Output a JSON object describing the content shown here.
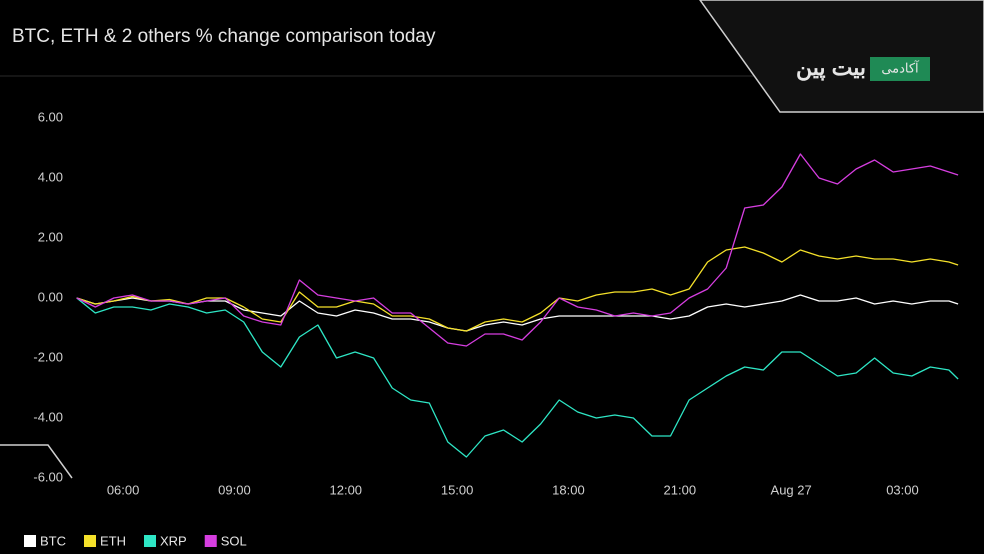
{
  "chart_data": {
    "type": "line",
    "title": "BTC, ETH & 2 others % change comparison today",
    "x": [
      4.75,
      5.25,
      5.75,
      6.25,
      6.75,
      7.25,
      7.75,
      8.25,
      8.75,
      9.25,
      9.75,
      10.25,
      10.75,
      11.25,
      11.75,
      12.25,
      12.75,
      13.25,
      13.75,
      14.25,
      14.75,
      15.25,
      15.75,
      16.25,
      16.75,
      17.25,
      17.75,
      18.25,
      18.75,
      19.25,
      19.75,
      20.25,
      20.75,
      21.25,
      21.75,
      22.25,
      22.75,
      23.25,
      23.75,
      24.25,
      24.75,
      25.25,
      25.75,
      26.25,
      26.75,
      27.25,
      27.75,
      28.25,
      28.5
    ],
    "series": [
      {
        "name": "BTC",
        "color": "#ffffff",
        "values": [
          0,
          -0.2,
          -0.1,
          0,
          -0.1,
          -0.1,
          -0.2,
          -0.1,
          -0.1,
          -0.4,
          -0.5,
          -0.6,
          -0.1,
          -0.5,
          -0.6,
          -0.4,
          -0.5,
          -0.7,
          -0.7,
          -0.8,
          -1.0,
          -1.1,
          -0.9,
          -0.8,
          -0.9,
          -0.7,
          -0.6,
          -0.6,
          -0.6,
          -0.6,
          -0.6,
          -0.6,
          -0.7,
          -0.6,
          -0.3,
          -0.2,
          -0.3,
          -0.2,
          -0.1,
          0.1,
          -0.1,
          -0.1,
          0.0,
          -0.2,
          -0.1,
          -0.2,
          -0.1,
          -0.1,
          -0.2
        ]
      },
      {
        "name": "ETH",
        "color": "#f5e12a",
        "values": [
          0,
          -0.2,
          -0.1,
          0.05,
          -0.1,
          -0.05,
          -0.2,
          0,
          0,
          -0.3,
          -0.7,
          -0.8,
          0.2,
          -0.3,
          -0.3,
          -0.1,
          -0.2,
          -0.6,
          -0.6,
          -0.7,
          -1.0,
          -1.1,
          -0.8,
          -0.7,
          -0.8,
          -0.5,
          0.0,
          -0.1,
          0.1,
          0.2,
          0.2,
          0.3,
          0.1,
          0.3,
          1.2,
          1.6,
          1.7,
          1.5,
          1.2,
          1.6,
          1.4,
          1.3,
          1.4,
          1.3,
          1.3,
          1.2,
          1.3,
          1.2,
          1.1
        ]
      },
      {
        "name": "XRP",
        "color": "#2ee6c5",
        "values": [
          0,
          -0.5,
          -0.3,
          -0.3,
          -0.4,
          -0.2,
          -0.3,
          -0.5,
          -0.4,
          -0.8,
          -1.8,
          -2.3,
          -1.3,
          -0.9,
          -2.0,
          -1.8,
          -2.0,
          -3.0,
          -3.4,
          -3.5,
          -4.8,
          -5.3,
          -4.6,
          -4.4,
          -4.8,
          -4.2,
          -3.4,
          -3.8,
          -4.0,
          -3.9,
          -4.0,
          -4.6,
          -4.6,
          -3.4,
          -3.0,
          -2.6,
          -2.3,
          -2.4,
          -1.8,
          -1.8,
          -2.2,
          -2.6,
          -2.5,
          -2.0,
          -2.5,
          -2.6,
          -2.3,
          -2.4,
          -2.7
        ]
      },
      {
        "name": "SOL",
        "color": "#d63ee0",
        "values": [
          0,
          -0.3,
          0,
          0.1,
          -0.1,
          -0.1,
          -0.2,
          -0.1,
          0.0,
          -0.6,
          -0.8,
          -0.9,
          0.6,
          0.1,
          0.0,
          -0.1,
          0.0,
          -0.5,
          -0.5,
          -1.0,
          -1.5,
          -1.6,
          -1.2,
          -1.2,
          -1.4,
          -0.8,
          0.0,
          -0.3,
          -0.4,
          -0.6,
          -0.5,
          -0.6,
          -0.5,
          0.0,
          0.3,
          1.0,
          3.0,
          3.1,
          3.7,
          4.8,
          4.0,
          3.8,
          4.3,
          4.6,
          4.2,
          4.3,
          4.4,
          4.2,
          4.1
        ]
      }
    ],
    "xlim": [
      4.65,
      28.55
    ],
    "xticks": [
      {
        "value": 6,
        "label": "06:00"
      },
      {
        "value": 9,
        "label": "09:00"
      },
      {
        "value": 12,
        "label": "12:00"
      },
      {
        "value": 15,
        "label": "15:00"
      },
      {
        "value": 18,
        "label": "18:00"
      },
      {
        "value": 21,
        "label": "21:00"
      },
      {
        "value": 24,
        "label": "Aug 27"
      },
      {
        "value": 27,
        "label": "03:00"
      }
    ],
    "ylim": [
      -6,
      6
    ],
    "yticks": [
      {
        "value": 6,
        "label": "6.00"
      },
      {
        "value": 4,
        "label": "4.00"
      },
      {
        "value": 2,
        "label": "2.00"
      },
      {
        "value": 0,
        "label": "0.00"
      },
      {
        "value": -2,
        "label": "-2.00"
      },
      {
        "value": -4,
        "label": "-4.00"
      },
      {
        "value": -6,
        "label": "-6.00"
      }
    ],
    "grid": false,
    "legend": "bottom-left"
  },
  "logo": {
    "label": "آکادمی",
    "brand": "بیت پین"
  }
}
